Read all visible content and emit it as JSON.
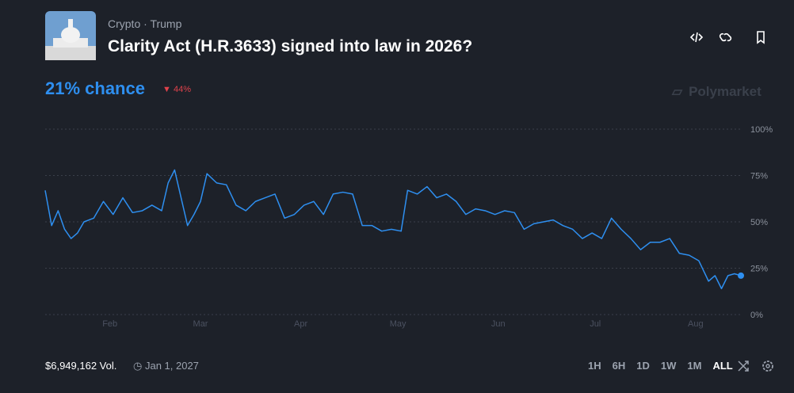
{
  "header": {
    "category": "Crypto",
    "separator": "·",
    "tag": "Trump",
    "title": "Clarity Act (H.R.3633) signed into law in 2026?",
    "chance": "21% chance",
    "change": "44%",
    "brand": "Polymarket"
  },
  "chart_data": {
    "type": "line",
    "color": "#2e8ff0",
    "grid": true,
    "x": [
      12,
      14,
      16,
      18,
      20,
      22,
      24,
      27,
      30,
      33,
      36,
      39,
      42,
      45,
      48,
      50,
      52,
      54,
      56,
      58,
      60,
      62,
      65,
      68,
      71,
      74,
      77,
      80,
      83,
      86,
      89,
      92,
      95,
      98,
      101,
      104,
      107,
      110,
      113,
      116,
      119,
      122,
      124,
      127,
      130,
      133,
      136,
      139,
      142,
      145,
      148,
      151,
      154,
      157,
      160,
      163,
      166,
      169,
      172,
      175,
      178,
      181,
      184,
      187,
      190,
      193,
      196,
      199,
      202,
      205,
      208,
      211,
      214,
      217,
      219,
      221,
      223,
      225,
      227
    ],
    "values": [
      67,
      48,
      56,
      46,
      41,
      44,
      50,
      52,
      61,
      54,
      63,
      55,
      56,
      59,
      56,
      71,
      78,
      63,
      48,
      54,
      61,
      76,
      71,
      70,
      59,
      56,
      61,
      63,
      65,
      52,
      54,
      59,
      61,
      54,
      65,
      66,
      65,
      48,
      48,
      45,
      46,
      45,
      67,
      65,
      69,
      63,
      65,
      61,
      54,
      57,
      56,
      54,
      56,
      55,
      46,
      49,
      50,
      51,
      48,
      46,
      41,
      44,
      41,
      52,
      46,
      41,
      35,
      39,
      39,
      41,
      33,
      32,
      29,
      18,
      21,
      14,
      21,
      22,
      21
    ],
    "xlim": [
      12,
      227
    ],
    "xticks": [
      {
        "value": 32,
        "label": "Feb"
      },
      {
        "value": 60,
        "label": "Mar"
      },
      {
        "value": 91,
        "label": "Apr"
      },
      {
        "value": 121,
        "label": "May"
      },
      {
        "value": 152,
        "label": "Jun"
      },
      {
        "value": 182,
        "label": "Jul"
      },
      {
        "value": 213,
        "label": "Aug"
      }
    ],
    "ylim": [
      0,
      100
    ],
    "yticks": [
      {
        "value": 0,
        "label": "0%"
      },
      {
        "value": 25,
        "label": "25%"
      },
      {
        "value": 50,
        "label": "50%"
      },
      {
        "value": 75,
        "label": "75%"
      },
      {
        "value": 100,
        "label": "100%"
      }
    ]
  },
  "footer": {
    "volume": "$6,949,162 Vol.",
    "end_date": "Jan 1, 2027",
    "ranges": [
      "1H",
      "6H",
      "1D",
      "1W",
      "1M",
      "ALL"
    ]
  }
}
